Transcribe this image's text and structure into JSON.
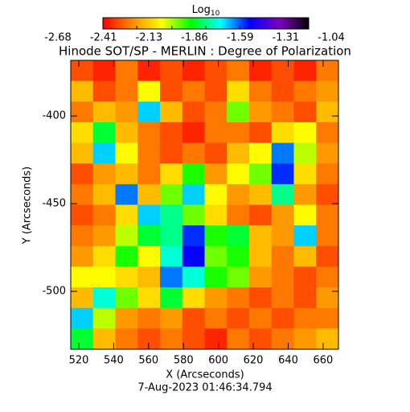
{
  "chart_data": {
    "type": "heatmap",
    "title": "Hinode SOT/SP - MERLIN : Degree of Polarization",
    "colorbar_label": "Log",
    "colorbar_label_subscript": "10",
    "x_label": "X (Arcseconds)",
    "y_label": "Y (Arcseconds)",
    "footer": "7-Aug-2023 01:46:34.794",
    "xlim": [
      515.4,
      668.8
    ],
    "ylim": [
      -533.0,
      -368.3
    ],
    "xticks": [
      520,
      540,
      560,
      580,
      600,
      620,
      640,
      660
    ],
    "yticks": [
      -400,
      -450,
      -500
    ],
    "clim": [
      -2.68,
      -1.04
    ],
    "cticks": [
      -2.68,
      -2.41,
      -2.13,
      -1.86,
      -1.59,
      -1.31,
      -1.04
    ],
    "colormap": [
      "#ff0000",
      "#ff8c00",
      "#ffff00",
      "#00ff00",
      "#00ffff",
      "#0000ff",
      "#8000c0",
      "#000000"
    ],
    "values": [
      [
        -2.55,
        -2.62,
        -2.48,
        -2.62,
        -2.55,
        -2.62,
        -2.55,
        -2.48,
        -2.62,
        -2.55,
        -2.62,
        -2.48
      ],
      [
        -2.35,
        -2.55,
        -2.48,
        -2.22,
        -2.55,
        -2.48,
        -2.55,
        -2.28,
        -2.48,
        -2.55,
        -2.48,
        -2.42
      ],
      [
        -2.48,
        -2.35,
        -2.42,
        -1.7,
        -2.35,
        -2.55,
        -2.48,
        -2.08,
        -2.42,
        -2.48,
        -2.55,
        -2.35
      ],
      [
        -2.28,
        -1.93,
        -2.35,
        -2.48,
        -2.55,
        -2.62,
        -2.48,
        -2.48,
        -2.55,
        -2.28,
        -2.22,
        -2.48
      ],
      [
        -2.35,
        -1.7,
        -2.22,
        -2.48,
        -2.55,
        -2.48,
        -2.55,
        -2.35,
        -2.22,
        -1.62,
        -2.15,
        -2.42
      ],
      [
        -2.55,
        -2.42,
        -2.35,
        -2.48,
        -2.28,
        -2.0,
        -2.42,
        -2.22,
        -2.08,
        -1.55,
        -2.28,
        -2.48
      ],
      [
        -2.48,
        -2.35,
        -1.62,
        -2.35,
        -2.08,
        -1.7,
        -2.22,
        -2.42,
        -2.35,
        -1.85,
        -2.42,
        -2.55
      ],
      [
        -2.55,
        -2.48,
        -2.28,
        -1.7,
        -1.85,
        -2.08,
        -2.28,
        -2.48,
        -2.55,
        -2.42,
        -2.22,
        -2.48
      ],
      [
        -2.48,
        -2.42,
        -2.15,
        -1.93,
        -1.85,
        -1.55,
        -2.0,
        -1.93,
        -2.35,
        -2.42,
        -1.7,
        -2.48
      ],
      [
        -2.42,
        -2.28,
        -2.0,
        -2.22,
        -1.78,
        -1.5,
        -2.08,
        -2.0,
        -2.35,
        -2.48,
        -2.35,
        -2.55
      ],
      [
        -2.22,
        -2.22,
        -2.28,
        -2.35,
        -1.62,
        -1.78,
        -2.0,
        -2.08,
        -2.42,
        -2.48,
        -2.55,
        -2.48
      ],
      [
        -2.35,
        -1.78,
        -2.08,
        -2.28,
        -1.93,
        -2.28,
        -2.42,
        -2.48,
        -2.55,
        -2.48,
        -2.55,
        -2.42
      ],
      [
        -1.7,
        -2.15,
        -2.42,
        -2.48,
        -2.42,
        -2.55,
        -2.48,
        -2.55,
        -2.48,
        -2.55,
        -2.48,
        -2.48
      ],
      [
        -1.93,
        -2.35,
        -2.48,
        -2.55,
        -2.48,
        -2.55,
        -2.62,
        -2.48,
        -2.55,
        -2.48,
        -2.42,
        -2.35
      ]
    ]
  }
}
